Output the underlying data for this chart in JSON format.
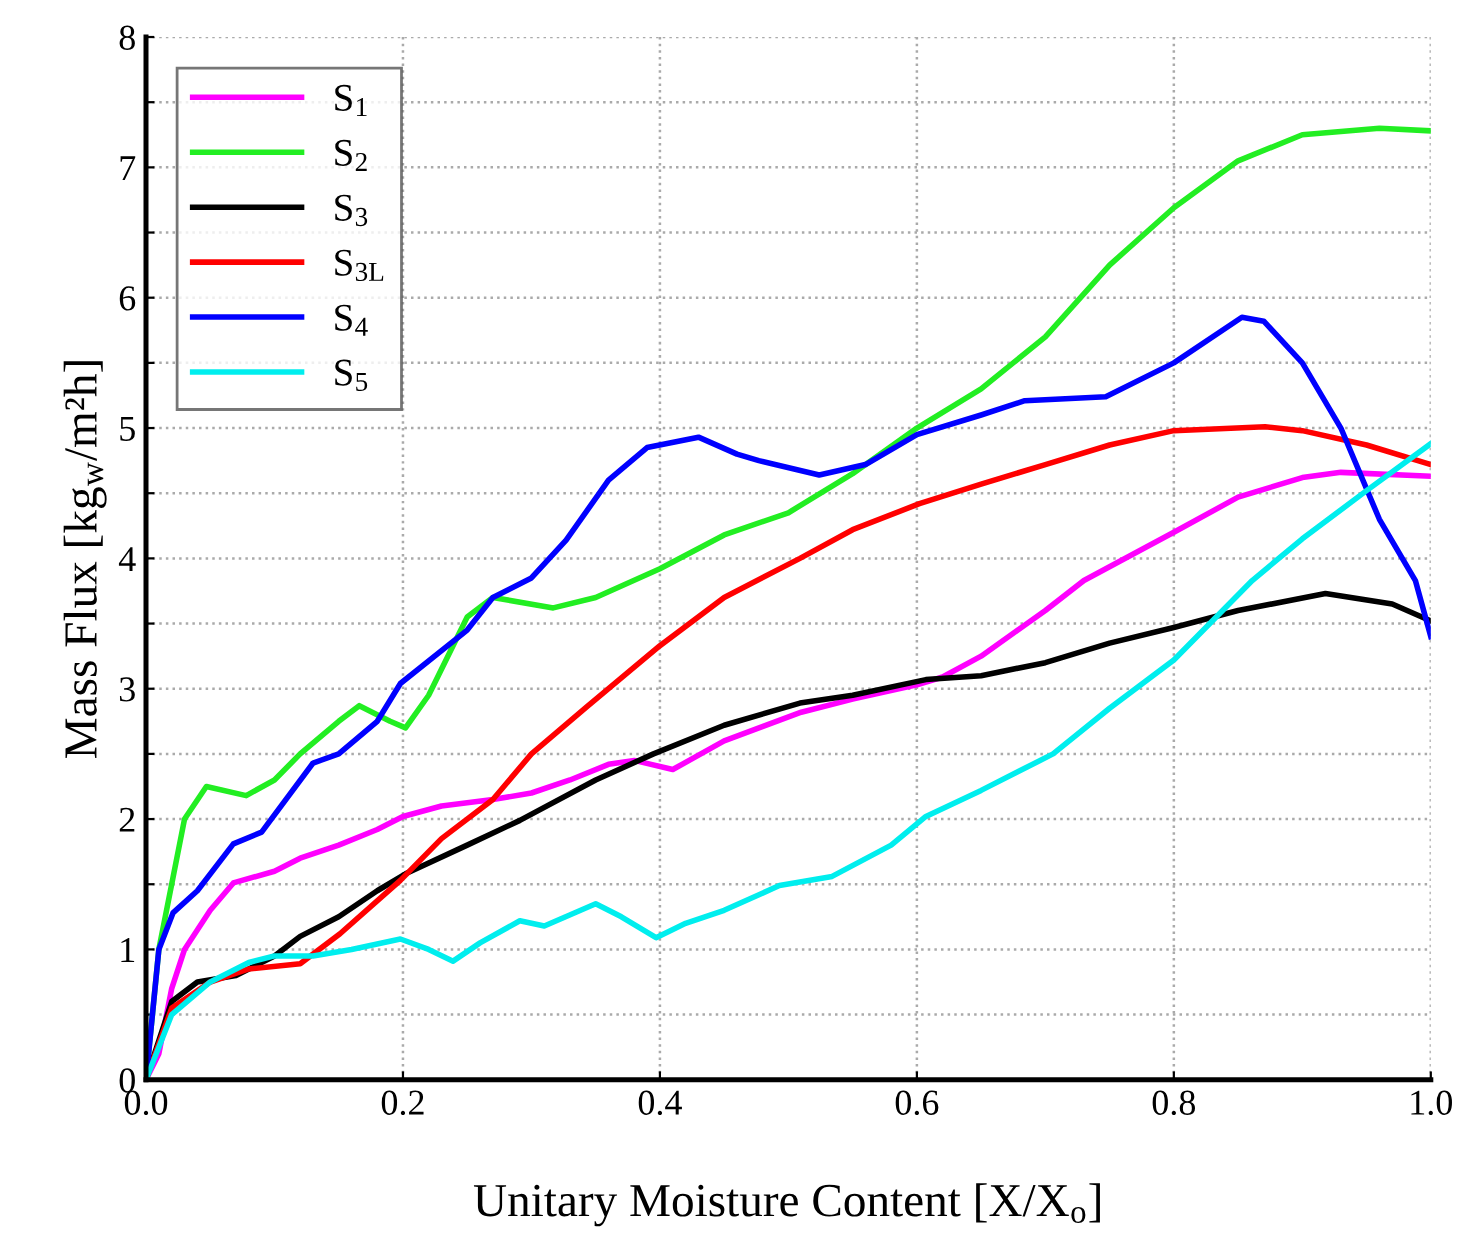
{
  "chart_data": {
    "type": "line",
    "xlabel": "Unitary Moisture Content [X/X$_{o}$]",
    "ylabel": "Mass Flux [kg$_{w}$/m²h]",
    "xlim": [
      0,
      1
    ],
    "ylim": [
      0,
      8
    ],
    "xticks": [
      {
        "value": 0,
        "label": "0.0"
      },
      0.2,
      0.4,
      0.6,
      0.8,
      {
        "value": 1,
        "label": "1.0"
      }
    ],
    "yticks": [
      0,
      {
        "value": 0.5,
        "label": null
      },
      1,
      {
        "value": 1.5,
        "label": null
      },
      2,
      {
        "value": 2.5,
        "label": null
      },
      3,
      {
        "value": 3.5,
        "label": null
      },
      4,
      {
        "value": 4.5,
        "label": null
      },
      5,
      {
        "value": 5.5,
        "label": null
      },
      6,
      {
        "value": 6.5,
        "label": null
      },
      7,
      {
        "value": 7.5,
        "label": null
      },
      8
    ],
    "grid": true,
    "legend": "top left",
    "marker": "none",
    "line_style": "solid",
    "series": [
      {
        "name": "S$_{1}$",
        "color": "#ff00ff",
        "x": [
          0,
          0.01,
          0.02,
          0.03,
          0.05,
          0.068,
          0.1,
          0.12,
          0.15,
          0.18,
          0.2,
          0.23,
          0.27,
          0.3,
          0.33,
          0.36,
          0.38,
          0.41,
          0.45,
          0.51,
          0.55,
          0.6,
          0.62,
          0.65,
          0.7,
          0.73,
          0.8,
          0.85,
          0.9,
          0.93,
          1.0
        ],
        "values": [
          0,
          0.2,
          0.7,
          1.0,
          1.3,
          1.51,
          1.6,
          1.7,
          1.8,
          1.92,
          2.02,
          2.1,
          2.15,
          2.2,
          2.3,
          2.42,
          2.45,
          2.38,
          2.6,
          2.82,
          2.92,
          3.03,
          3.09,
          3.25,
          3.6,
          3.83,
          4.2,
          4.47,
          4.62,
          4.66,
          4.63
        ]
      },
      {
        "name": "S$_{2}$",
        "color": "#22ee22",
        "x": [
          0,
          0.01,
          0.03,
          0.047,
          0.078,
          0.1,
          0.12,
          0.15,
          0.166,
          0.19,
          0.202,
          0.22,
          0.25,
          0.27,
          0.317,
          0.35,
          0.4,
          0.45,
          0.5,
          0.55,
          0.6,
          0.65,
          0.7,
          0.75,
          0.8,
          0.85,
          0.9,
          0.96,
          1.0
        ],
        "values": [
          0,
          1.0,
          2.0,
          2.25,
          2.18,
          2.3,
          2.5,
          2.75,
          2.87,
          2.75,
          2.7,
          2.95,
          3.55,
          3.7,
          3.62,
          3.7,
          3.92,
          4.18,
          4.35,
          4.65,
          5.0,
          5.3,
          5.7,
          6.25,
          6.69,
          7.05,
          7.25,
          7.3,
          7.28
        ]
      },
      {
        "name": "S$_{3}$",
        "color": "#000000",
        "x": [
          0,
          0.02,
          0.04,
          0.07,
          0.1,
          0.12,
          0.15,
          0.18,
          0.202,
          0.25,
          0.291,
          0.35,
          0.395,
          0.45,
          0.509,
          0.55,
          0.607,
          0.65,
          0.7,
          0.75,
          0.8,
          0.85,
          0.918,
          0.97,
          1.0
        ],
        "values": [
          0,
          0.6,
          0.75,
          0.8,
          0.95,
          1.1,
          1.25,
          1.45,
          1.58,
          1.8,
          1.99,
          2.3,
          2.5,
          2.72,
          2.89,
          2.95,
          3.07,
          3.1,
          3.2,
          3.35,
          3.47,
          3.6,
          3.73,
          3.65,
          3.52
        ]
      },
      {
        "name": "S$_{3L}$",
        "color": "#ff0000",
        "x": [
          0,
          0.02,
          0.05,
          0.08,
          0.12,
          0.151,
          0.198,
          0.23,
          0.27,
          0.3,
          0.343,
          0.4,
          0.45,
          0.509,
          0.55,
          0.602,
          0.65,
          0.7,
          0.75,
          0.8,
          0.871,
          0.9,
          0.95,
          1.0
        ],
        "values": [
          0,
          0.55,
          0.75,
          0.85,
          0.89,
          1.12,
          1.53,
          1.85,
          2.15,
          2.5,
          2.86,
          3.33,
          3.7,
          4.0,
          4.22,
          4.42,
          4.57,
          4.72,
          4.87,
          4.98,
          5.01,
          4.98,
          4.87,
          4.72
        ]
      },
      {
        "name": "S$_{4}$",
        "color": "#0000ff",
        "x": [
          0,
          0.01,
          0.021,
          0.04,
          0.068,
          0.09,
          0.13,
          0.15,
          0.18,
          0.198,
          0.25,
          0.27,
          0.3,
          0.327,
          0.36,
          0.39,
          0.43,
          0.46,
          0.477,
          0.524,
          0.56,
          0.6,
          0.65,
          0.684,
          0.747,
          0.8,
          0.853,
          0.87,
          0.9,
          0.93,
          0.96,
          0.988,
          1.0
        ],
        "values": [
          0,
          1.0,
          1.28,
          1.45,
          1.81,
          1.9,
          2.43,
          2.5,
          2.75,
          3.04,
          3.45,
          3.7,
          3.85,
          4.14,
          4.6,
          4.85,
          4.93,
          4.8,
          4.75,
          4.64,
          4.72,
          4.95,
          5.1,
          5.21,
          5.24,
          5.5,
          5.85,
          5.82,
          5.5,
          5.0,
          4.3,
          3.83,
          3.4
        ]
      },
      {
        "name": "S$_{5}$",
        "color": "#00eeee",
        "x": [
          0,
          0.02,
          0.05,
          0.08,
          0.1,
          0.13,
          0.16,
          0.198,
          0.22,
          0.239,
          0.26,
          0.291,
          0.31,
          0.35,
          0.37,
          0.397,
          0.42,
          0.45,
          0.493,
          0.534,
          0.58,
          0.607,
          0.65,
          0.706,
          0.75,
          0.8,
          0.861,
          0.9,
          0.95,
          1.0
        ],
        "values": [
          0,
          0.5,
          0.75,
          0.9,
          0.95,
          0.95,
          1.0,
          1.08,
          1.0,
          0.91,
          1.05,
          1.22,
          1.18,
          1.35,
          1.25,
          1.09,
          1.2,
          1.3,
          1.49,
          1.56,
          1.8,
          2.02,
          2.22,
          2.5,
          2.85,
          3.22,
          3.83,
          4.15,
          4.52,
          4.88
        ]
      }
    ]
  }
}
